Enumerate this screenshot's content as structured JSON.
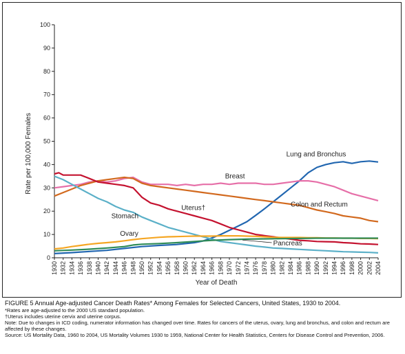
{
  "chart_data": {
    "type": "line",
    "xlabel": "Year of Death",
    "ylabel": "Rate per 100,000 Females",
    "xlim": [
      1930,
      2004
    ],
    "ylim": [
      0,
      100
    ],
    "yticks": [
      0,
      10,
      20,
      30,
      40,
      50,
      60,
      70,
      80,
      90,
      100
    ],
    "xticks": [
      1930,
      1932,
      1934,
      1936,
      1938,
      1940,
      1942,
      1944,
      1946,
      1948,
      1950,
      1952,
      1954,
      1956,
      1958,
      1960,
      1962,
      1964,
      1966,
      1968,
      1970,
      1972,
      1974,
      1976,
      1978,
      1980,
      1982,
      1984,
      1986,
      1988,
      1990,
      1992,
      1994,
      1996,
      1998,
      2000,
      2002,
      2004
    ],
    "series": [
      {
        "name": "Lung and Bronchus",
        "color": "#2166b0",
        "points": [
          [
            1930,
            1.8
          ],
          [
            1934,
            2.2
          ],
          [
            1938,
            2.7
          ],
          [
            1942,
            3.2
          ],
          [
            1946,
            4.0
          ],
          [
            1950,
            4.8
          ],
          [
            1954,
            5.3
          ],
          [
            1958,
            5.7
          ],
          [
            1962,
            6.5
          ],
          [
            1964,
            7.2
          ],
          [
            1966,
            8.5
          ],
          [
            1968,
            10.0
          ],
          [
            1970,
            11.8
          ],
          [
            1972,
            13.6
          ],
          [
            1974,
            15.5
          ],
          [
            1976,
            18.2
          ],
          [
            1978,
            21.0
          ],
          [
            1980,
            24.0
          ],
          [
            1982,
            27.0
          ],
          [
            1984,
            30.0
          ],
          [
            1986,
            33.0
          ],
          [
            1988,
            36.5
          ],
          [
            1990,
            38.8
          ],
          [
            1992,
            40.0
          ],
          [
            1994,
            40.8
          ],
          [
            1996,
            41.2
          ],
          [
            1998,
            40.5
          ],
          [
            2000,
            41.2
          ],
          [
            2002,
            41.5
          ],
          [
            2004,
            41.1
          ]
        ],
        "label": {
          "text": "Lung and Bronchus",
          "x": 1983,
          "y": 43.5
        }
      },
      {
        "name": "Breast",
        "color": "#e66fa8",
        "points": [
          [
            1930,
            30.0
          ],
          [
            1932,
            30.5
          ],
          [
            1934,
            31.0
          ],
          [
            1936,
            31.5
          ],
          [
            1938,
            32.5
          ],
          [
            1940,
            33.0
          ],
          [
            1942,
            32.5
          ],
          [
            1944,
            33.0
          ],
          [
            1946,
            34.0
          ],
          [
            1948,
            34.5
          ],
          [
            1950,
            32.5
          ],
          [
            1952,
            31.5
          ],
          [
            1954,
            31.5
          ],
          [
            1956,
            31.5
          ],
          [
            1958,
            31.0
          ],
          [
            1960,
            31.5
          ],
          [
            1962,
            31.0
          ],
          [
            1964,
            31.5
          ],
          [
            1966,
            31.5
          ],
          [
            1968,
            32.0
          ],
          [
            1970,
            31.5
          ],
          [
            1972,
            32.0
          ],
          [
            1974,
            32.0
          ],
          [
            1976,
            32.0
          ],
          [
            1978,
            31.5
          ],
          [
            1980,
            31.5
          ],
          [
            1982,
            32.0
          ],
          [
            1984,
            32.5
          ],
          [
            1986,
            33.0
          ],
          [
            1988,
            33.0
          ],
          [
            1990,
            32.5
          ],
          [
            1992,
            31.5
          ],
          [
            1994,
            30.5
          ],
          [
            1996,
            29.0
          ],
          [
            1998,
            27.5
          ],
          [
            2000,
            26.5
          ],
          [
            2002,
            25.5
          ],
          [
            2004,
            24.5
          ]
        ],
        "label": {
          "text": "Breast",
          "x": 1969,
          "y": 34.0
        }
      },
      {
        "name": "Colon and Rectum",
        "color": "#d2691e",
        "points": [
          [
            1930,
            26.5
          ],
          [
            1932,
            28.0
          ],
          [
            1934,
            29.5
          ],
          [
            1936,
            31.0
          ],
          [
            1938,
            32.0
          ],
          [
            1940,
            33.0
          ],
          [
            1942,
            33.5
          ],
          [
            1944,
            34.0
          ],
          [
            1946,
            34.5
          ],
          [
            1948,
            34.0
          ],
          [
            1950,
            32.0
          ],
          [
            1952,
            31.0
          ],
          [
            1954,
            30.5
          ],
          [
            1956,
            30.0
          ],
          [
            1958,
            29.5
          ],
          [
            1960,
            29.0
          ],
          [
            1962,
            28.5
          ],
          [
            1964,
            28.0
          ],
          [
            1966,
            27.5
          ],
          [
            1968,
            27.0
          ],
          [
            1970,
            26.5
          ],
          [
            1972,
            26.0
          ],
          [
            1974,
            25.5
          ],
          [
            1976,
            25.0
          ],
          [
            1978,
            24.5
          ],
          [
            1980,
            24.0
          ],
          [
            1982,
            23.5
          ],
          [
            1984,
            23.0
          ],
          [
            1986,
            22.5
          ],
          [
            1988,
            21.5
          ],
          [
            1990,
            20.5
          ],
          [
            1992,
            19.8
          ],
          [
            1994,
            19.0
          ],
          [
            1996,
            18.0
          ],
          [
            1998,
            17.5
          ],
          [
            2000,
            17.0
          ],
          [
            2002,
            16.0
          ],
          [
            2004,
            15.5
          ]
        ],
        "label": {
          "text": "Colon and Rectum",
          "x": 1984,
          "y": 22.0
        }
      },
      {
        "name": "Uterus",
        "color": "#c4122f",
        "points": [
          [
            1930,
            36.0
          ],
          [
            1931,
            36.5
          ],
          [
            1932,
            35.5
          ],
          [
            1934,
            35.5
          ],
          [
            1936,
            35.5
          ],
          [
            1938,
            34.0
          ],
          [
            1940,
            32.5
          ],
          [
            1942,
            32.0
          ],
          [
            1944,
            31.5
          ],
          [
            1946,
            31.0
          ],
          [
            1948,
            30.0
          ],
          [
            1950,
            26.0
          ],
          [
            1952,
            23.5
          ],
          [
            1954,
            22.5
          ],
          [
            1956,
            21.0
          ],
          [
            1958,
            20.0
          ],
          [
            1960,
            19.0
          ],
          [
            1962,
            18.0
          ],
          [
            1964,
            17.0
          ],
          [
            1966,
            16.0
          ],
          [
            1968,
            14.5
          ],
          [
            1970,
            13.0
          ],
          [
            1972,
            12.0
          ],
          [
            1974,
            11.0
          ],
          [
            1976,
            10.0
          ],
          [
            1978,
            9.5
          ],
          [
            1980,
            9.0
          ],
          [
            1982,
            8.5
          ],
          [
            1984,
            8.0
          ],
          [
            1986,
            7.5
          ],
          [
            1988,
            7.3
          ],
          [
            1990,
            7.0
          ],
          [
            1992,
            6.9
          ],
          [
            1994,
            6.8
          ],
          [
            1996,
            6.5
          ],
          [
            1998,
            6.3
          ],
          [
            2000,
            6.0
          ],
          [
            2002,
            5.9
          ],
          [
            2004,
            5.7
          ]
        ],
        "label": {
          "text": "Uterus†",
          "x": 1959,
          "y": 20.5
        }
      },
      {
        "name": "Stomach",
        "color": "#5bb0c8",
        "points": [
          [
            1930,
            35.0
          ],
          [
            1932,
            33.5
          ],
          [
            1934,
            31.5
          ],
          [
            1936,
            29.5
          ],
          [
            1938,
            27.5
          ],
          [
            1940,
            25.5
          ],
          [
            1942,
            24.0
          ],
          [
            1944,
            22.0
          ],
          [
            1946,
            20.5
          ],
          [
            1948,
            19.5
          ],
          [
            1950,
            17.5
          ],
          [
            1952,
            16.0
          ],
          [
            1954,
            14.5
          ],
          [
            1956,
            13.0
          ],
          [
            1958,
            12.0
          ],
          [
            1960,
            11.0
          ],
          [
            1962,
            10.0
          ],
          [
            1964,
            9.0
          ],
          [
            1966,
            8.0
          ],
          [
            1968,
            7.0
          ],
          [
            1970,
            6.5
          ],
          [
            1972,
            6.0
          ],
          [
            1974,
            5.5
          ],
          [
            1976,
            5.0
          ],
          [
            1978,
            4.6
          ],
          [
            1980,
            4.2
          ],
          [
            1982,
            4.0
          ],
          [
            1984,
            3.8
          ],
          [
            1986,
            3.6
          ],
          [
            1988,
            3.4
          ],
          [
            1990,
            3.2
          ],
          [
            1992,
            3.0
          ],
          [
            1994,
            2.8
          ],
          [
            1996,
            2.6
          ],
          [
            1998,
            2.5
          ],
          [
            2000,
            2.4
          ],
          [
            2002,
            2.3
          ],
          [
            2004,
            2.1
          ]
        ],
        "label": {
          "text": "Stomach",
          "x": 1943,
          "y": 17.0
        }
      },
      {
        "name": "Ovary",
        "color": "#f5a623",
        "points": [
          [
            1930,
            3.8
          ],
          [
            1932,
            4.2
          ],
          [
            1934,
            4.8
          ],
          [
            1936,
            5.3
          ],
          [
            1938,
            5.8
          ],
          [
            1940,
            6.2
          ],
          [
            1942,
            6.5
          ],
          [
            1944,
            6.8
          ],
          [
            1946,
            7.3
          ],
          [
            1948,
            7.8
          ],
          [
            1950,
            8.2
          ],
          [
            1952,
            8.5
          ],
          [
            1954,
            8.8
          ],
          [
            1956,
            9.0
          ],
          [
            1958,
            9.1
          ],
          [
            1960,
            9.2
          ],
          [
            1962,
            9.3
          ],
          [
            1964,
            9.3
          ],
          [
            1966,
            9.3
          ],
          [
            1968,
            9.4
          ],
          [
            1970,
            9.4
          ],
          [
            1972,
            9.4
          ],
          [
            1974,
            9.3
          ],
          [
            1976,
            9.2
          ],
          [
            1978,
            9.0
          ],
          [
            1980,
            8.8
          ],
          [
            1982,
            8.7
          ],
          [
            1984,
            8.7
          ],
          [
            1986,
            8.7
          ],
          [
            1988,
            8.6
          ],
          [
            1990,
            8.6
          ],
          [
            1992,
            8.5
          ],
          [
            1994,
            8.5
          ],
          [
            1996,
            8.4
          ],
          [
            1998,
            8.4
          ],
          [
            2000,
            8.3
          ],
          [
            2002,
            8.3
          ],
          [
            2004,
            8.2
          ]
        ],
        "label": {
          "text": "Ovary",
          "x": 1945,
          "y": 9.5
        }
      },
      {
        "name": "Pancreas",
        "color": "#2e8b57",
        "points": [
          [
            1930,
            3.0
          ],
          [
            1934,
            3.3
          ],
          [
            1938,
            3.7
          ],
          [
            1942,
            4.2
          ],
          [
            1946,
            4.8
          ],
          [
            1948,
            5.5
          ],
          [
            1950,
            5.8
          ],
          [
            1954,
            6.1
          ],
          [
            1958,
            6.5
          ],
          [
            1962,
            7.0
          ],
          [
            1966,
            7.5
          ],
          [
            1970,
            7.8
          ],
          [
            1974,
            8.0
          ],
          [
            1978,
            8.1
          ],
          [
            1982,
            8.2
          ],
          [
            1986,
            8.3
          ],
          [
            1990,
            8.4
          ],
          [
            1994,
            8.4
          ],
          [
            1998,
            8.4
          ],
          [
            2002,
            8.4
          ],
          [
            2004,
            8.4
          ]
        ],
        "label": {
          "text": "Pancreas",
          "x": 1980,
          "y": 5.3
        }
      }
    ]
  },
  "caption": {
    "title": "FIGURE 5  Annual Age-adjusted Cancer Death Rates* Among Females for Selected Cancers, United States, 1930 to 2004.",
    "notes": [
      "*Rates are age-adjusted to the 2000 US standard population.",
      "†Uterus includes uterine cervix and uterine corpus.",
      "Note: Due to changes in ICD coding, numerator information has changed over time. Rates for cancers of the uterus, ovary, lung and bronchus, and colon and rectum are affected by these changes.",
      "Source: US Mortality Data, 1960 to 2004, US Mortality Volumes 1930 to 1959, National Center for Health Statistics, Centers for Disease Control and Prevention, 2006."
    ]
  }
}
